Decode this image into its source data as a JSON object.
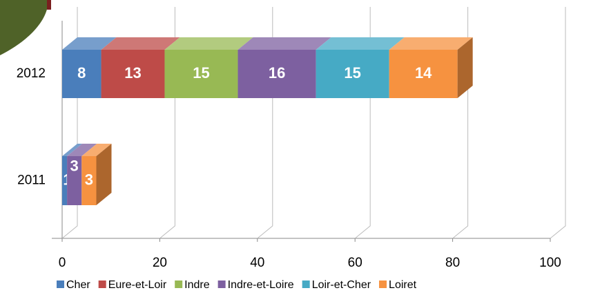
{
  "chart_data": {
    "type": "bar3d",
    "orientation": "horizontal",
    "stacked": true,
    "categories": [
      "2012",
      "2011"
    ],
    "series": [
      {
        "name": "Cher",
        "color": "#4a7ebb",
        "values": [
          8,
          1
        ]
      },
      {
        "name": "Eure-et-Loir",
        "color": "#be4b48",
        "values": [
          13,
          null
        ]
      },
      {
        "name": "Indre",
        "color": "#98b954",
        "values": [
          15,
          null
        ]
      },
      {
        "name": "Indre-et-Loire",
        "color": "#7d60a0",
        "values": [
          16,
          3
        ]
      },
      {
        "name": "Loir-et-Cher",
        "color": "#46aac5",
        "values": [
          15,
          null
        ]
      },
      {
        "name": "Loiret",
        "color": "#f69240",
        "values": [
          14,
          3
        ]
      }
    ],
    "xlim": [
      0,
      100
    ],
    "xticks": [
      0,
      20,
      40,
      60,
      80,
      100
    ],
    "grid": true,
    "legend": "bottom"
  }
}
